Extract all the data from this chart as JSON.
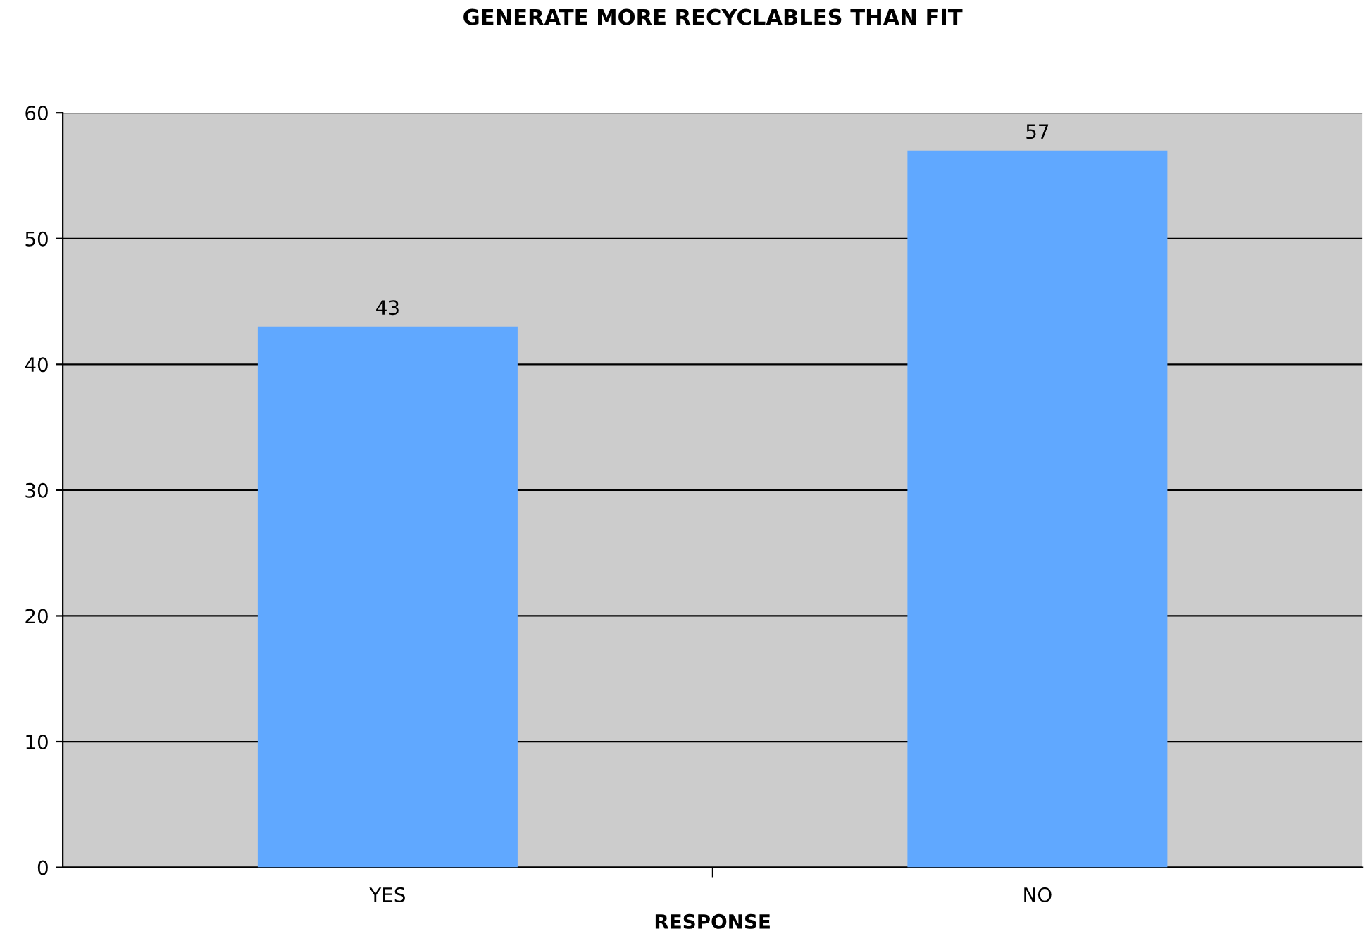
{
  "chart_data": {
    "type": "bar",
    "title": "GENERATE MORE RECYCLABLES THAN FIT",
    "xlabel": "RESPONSE",
    "categories": [
      "YES",
      "NO"
    ],
    "values": [
      43,
      57
    ],
    "color": "#60a8ff",
    "ylim": [
      0,
      60
    ],
    "yticks": [
      0,
      10,
      20,
      30,
      40,
      50,
      60
    ],
    "grid": "y",
    "data_labels": true,
    "legend": false
  }
}
